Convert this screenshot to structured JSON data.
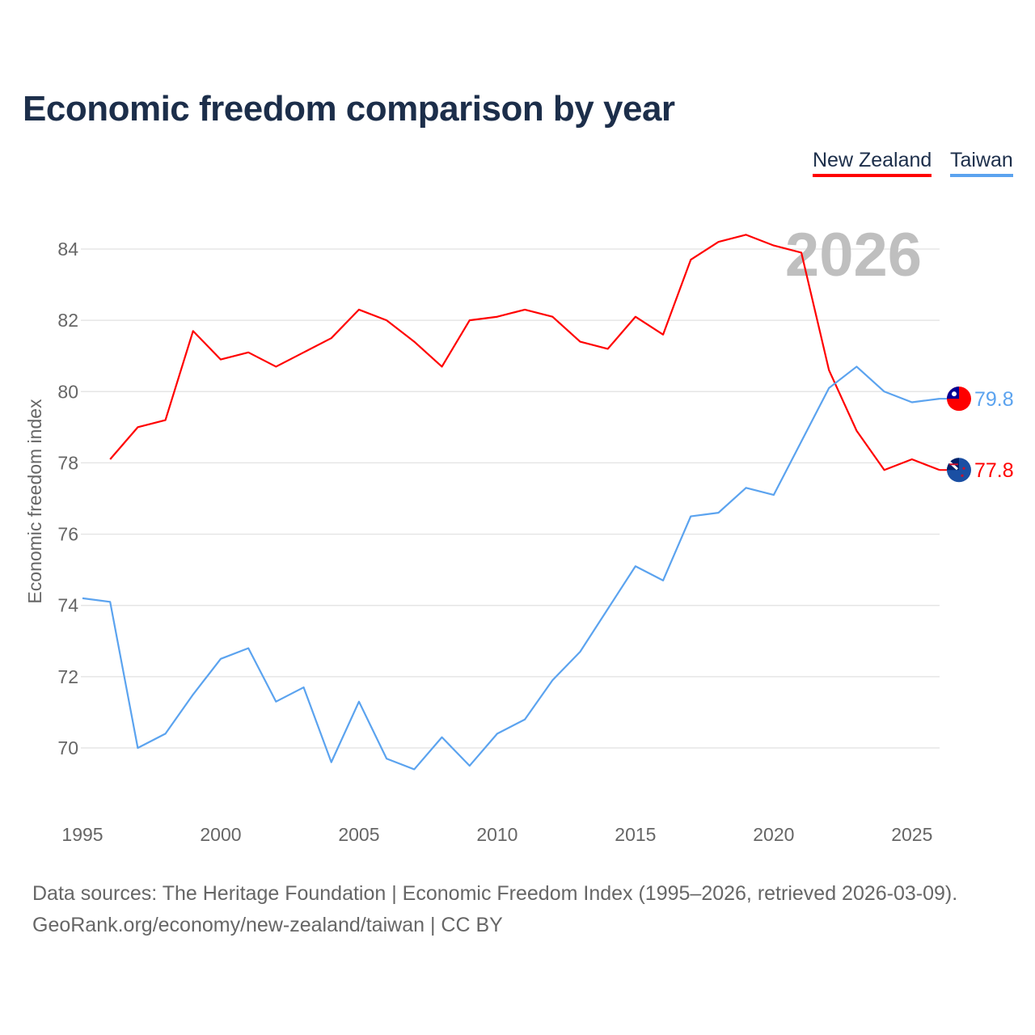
{
  "chart_data": {
    "type": "line",
    "title": "Economic freedom comparison by year",
    "xlabel": "",
    "ylabel": "Economic freedom index",
    "xlim": [
      1995,
      2026
    ],
    "ylim": [
      68.5,
      85
    ],
    "x_ticks": [
      1995,
      2000,
      2005,
      2010,
      2015,
      2020,
      2025
    ],
    "y_ticks": [
      70,
      72,
      74,
      76,
      78,
      80,
      82,
      84
    ],
    "grid": true,
    "legend_placement": "top-right",
    "year_watermark": "2026",
    "series": [
      {
        "name": "New Zealand",
        "color": "#ff0000",
        "end_label": "77.8",
        "x": [
          1996,
          1997,
          1998,
          1999,
          2000,
          2001,
          2002,
          2003,
          2004,
          2005,
          2006,
          2007,
          2008,
          2009,
          2010,
          2011,
          2012,
          2013,
          2014,
          2015,
          2016,
          2017,
          2018,
          2019,
          2020,
          2021,
          2022,
          2023,
          2024,
          2025,
          2026
        ],
        "values": [
          78.1,
          79.0,
          79.2,
          81.7,
          80.9,
          81.1,
          80.7,
          81.1,
          81.5,
          82.3,
          82.0,
          81.4,
          80.7,
          82.0,
          82.1,
          82.3,
          82.1,
          81.4,
          81.2,
          82.1,
          81.6,
          83.7,
          84.2,
          84.4,
          84.1,
          83.9,
          80.6,
          78.9,
          77.8,
          78.1,
          77.8
        ]
      },
      {
        "name": "Taiwan",
        "color": "#5ba3ef",
        "end_label": "79.8",
        "x": [
          1995,
          1996,
          1997,
          1998,
          1999,
          2000,
          2001,
          2002,
          2003,
          2004,
          2005,
          2006,
          2007,
          2008,
          2009,
          2010,
          2011,
          2012,
          2013,
          2014,
          2015,
          2016,
          2017,
          2018,
          2019,
          2020,
          2021,
          2022,
          2023,
          2024,
          2025,
          2026
        ],
        "values": [
          74.2,
          74.1,
          70.0,
          70.4,
          71.5,
          72.5,
          72.8,
          71.3,
          71.7,
          69.6,
          71.3,
          69.7,
          69.4,
          70.3,
          69.5,
          70.4,
          70.8,
          71.9,
          72.7,
          73.9,
          75.1,
          74.7,
          76.5,
          76.6,
          77.3,
          77.1,
          78.6,
          80.1,
          80.7,
          80.0,
          79.7,
          79.8
        ]
      }
    ]
  },
  "source_line1": "Data sources: The Heritage Foundation | Economic Freedom Index (1995–2026, retrieved 2026-03-09).",
  "source_line2": "GeoRank.org/economy/new-zealand/taiwan | CC BY"
}
